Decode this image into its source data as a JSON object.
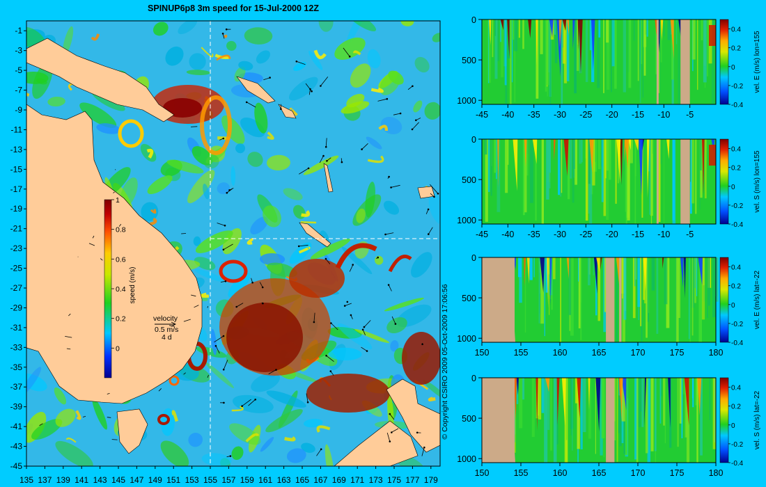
{
  "title": "SPINUP6p8 3m speed for 15-Jul-2000 12Z",
  "copyright": "© Copyright CSIRO 2009   05-Oct-2009 17:06:56",
  "colors": {
    "background": "#00ccff",
    "land_map": "#ffcc99",
    "land_section": "#ccaa88"
  },
  "chart_data": [
    {
      "type": "heatmap",
      "name": "map",
      "title": "SPINUP6p8 3m speed for 15-Jul-2000 12Z",
      "x_ticks": [
        "135",
        "137",
        "139",
        "141",
        "143",
        "145",
        "147",
        "149",
        "151",
        "153",
        "155",
        "157",
        "159",
        "161",
        "163",
        "165",
        "167",
        "169",
        "171",
        "173",
        "175",
        "177",
        "179"
      ],
      "y_ticks": [
        "-1",
        "-3",
        "-5",
        "-7",
        "-9",
        "-11",
        "-13",
        "-15",
        "-17",
        "-19",
        "-21",
        "-23",
        "-25",
        "-27",
        "-29",
        "-31",
        "-33",
        "-35",
        "-37",
        "-39",
        "-41",
        "-43",
        "-45"
      ],
      "xlim": [
        135,
        180
      ],
      "ylim": [
        -45,
        0
      ],
      "colorbar": {
        "label": "speed (m/s)",
        "ticks": [
          "1",
          "0.8",
          "0.6",
          "0.4",
          "0.2",
          "0"
        ],
        "range": [
          -0.2,
          1
        ]
      },
      "velocity_key": {
        "label": "velocity",
        "speed": "0.5 m/s",
        "days": "4 d"
      },
      "section_lines": {
        "lon": 155,
        "lat": -22
      }
    },
    {
      "type": "heatmap",
      "name": "vel-E-lon155",
      "x_ticks": [
        "-45",
        "-40",
        "-35",
        "-30",
        "-25",
        "-20",
        "-15",
        "-10",
        "-5"
      ],
      "y_ticks": [
        "0",
        "500",
        "1000"
      ],
      "xlim": [
        -45,
        0
      ],
      "ylim": [
        1050,
        0
      ],
      "colorbar": {
        "label": "vel. E (m/s) lon=155",
        "ticks": [
          "0.4",
          "0.2",
          "0",
          "-0.2",
          "-0.4"
        ],
        "range": [
          -0.4,
          0.5
        ]
      }
    },
    {
      "type": "heatmap",
      "name": "vel-S-lon155",
      "x_ticks": [
        "-45",
        "-40",
        "-35",
        "-30",
        "-25",
        "-20",
        "-15",
        "-10",
        "-5"
      ],
      "y_ticks": [
        "0",
        "500",
        "1000"
      ],
      "xlim": [
        -45,
        0
      ],
      "ylim": [
        1050,
        0
      ],
      "colorbar": {
        "label": "vel. S (m/s) lon=155",
        "ticks": [
          "0.4",
          "0.2",
          "0",
          "-0.2",
          "-0.4"
        ],
        "range": [
          -0.4,
          0.5
        ]
      }
    },
    {
      "type": "heatmap",
      "name": "vel-E-lat-22",
      "x_ticks": [
        "150",
        "155",
        "160",
        "165",
        "170",
        "175",
        "180"
      ],
      "y_ticks": [
        "0",
        "500",
        "1000"
      ],
      "xlim": [
        150,
        180
      ],
      "ylim": [
        1050,
        0
      ],
      "colorbar": {
        "label": "vel. E (m/s) lat=-22",
        "ticks": [
          "0.4",
          "0.2",
          "0",
          "-0.2",
          "-0.4"
        ],
        "range": [
          -0.4,
          0.5
        ]
      }
    },
    {
      "type": "heatmap",
      "name": "vel-S-lat-22",
      "x_ticks": [
        "150",
        "155",
        "160",
        "165",
        "170",
        "175",
        "180"
      ],
      "y_ticks": [
        "0",
        "500",
        "1000"
      ],
      "xlim": [
        150,
        180
      ],
      "ylim": [
        1050,
        0
      ],
      "colorbar": {
        "label": "vel. S (m/s) lat=-22",
        "ticks": [
          "0.4",
          "0.2",
          "0",
          "-0.2",
          "-0.4"
        ],
        "range": [
          -0.4,
          0.5
        ]
      }
    }
  ]
}
